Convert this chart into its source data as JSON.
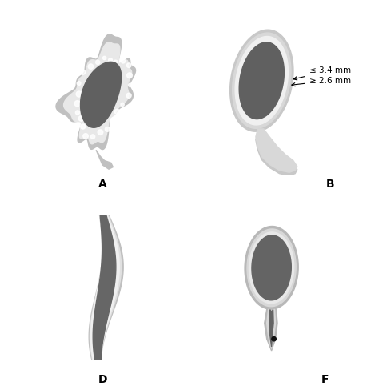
{
  "background_color": "#ffffff",
  "panel_bg": "#f0f0f0",
  "border_color": "#999999",
  "dark_fill": "#707070",
  "medium_fill": "#aaaaaa",
  "light_fill": "#cccccc",
  "white_fill": "#e8e8e8",
  "labels": {
    "A": "A",
    "B": "B",
    "D": "D",
    "F": "F"
  },
  "annotation_1": "≤ 3.4 mm",
  "annotation_2": "≥ 2.6 mm",
  "label_fontsize": 10,
  "annotation_fontsize": 7.5
}
